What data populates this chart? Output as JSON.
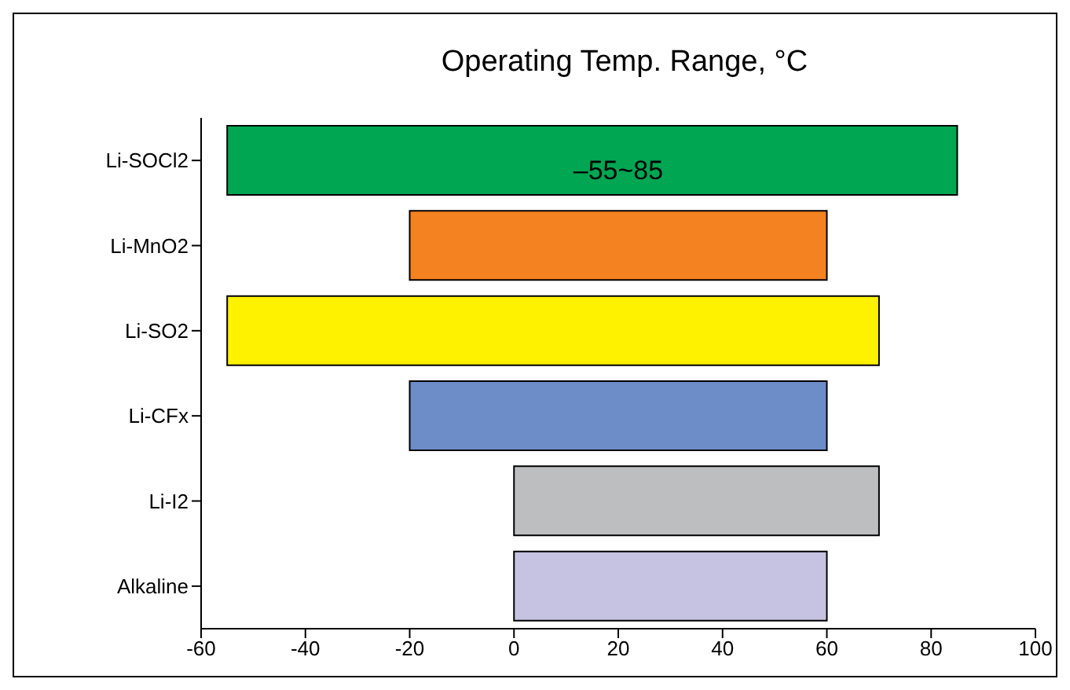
{
  "chart_data": {
    "type": "bar",
    "orientation": "horizontal",
    "title": "Operating Temp. Range, °C",
    "categories": [
      "Li-SOCl2",
      "Li-MnO2",
      "Li-SO2",
      "Li-CFx",
      "Li-I2",
      "Alkaline"
    ],
    "base": [
      -55,
      -20,
      -55,
      -20,
      0,
      0
    ],
    "values": [
      140,
      80,
      125,
      80,
      70,
      60
    ],
    "colors": [
      "#00a651",
      "#f58220",
      "#fff200",
      "#6d8dc9",
      "#bcbec0",
      "#c5c3e1"
    ],
    "xlim": [
      -60,
      100
    ],
    "xticks": [
      -60,
      -40,
      -20,
      0,
      20,
      40,
      60,
      80,
      100
    ],
    "annotations": [
      {
        "text": "–55~85",
        "x": 20,
        "y": "Li-SOCl2"
      }
    ],
    "grid": false
  }
}
